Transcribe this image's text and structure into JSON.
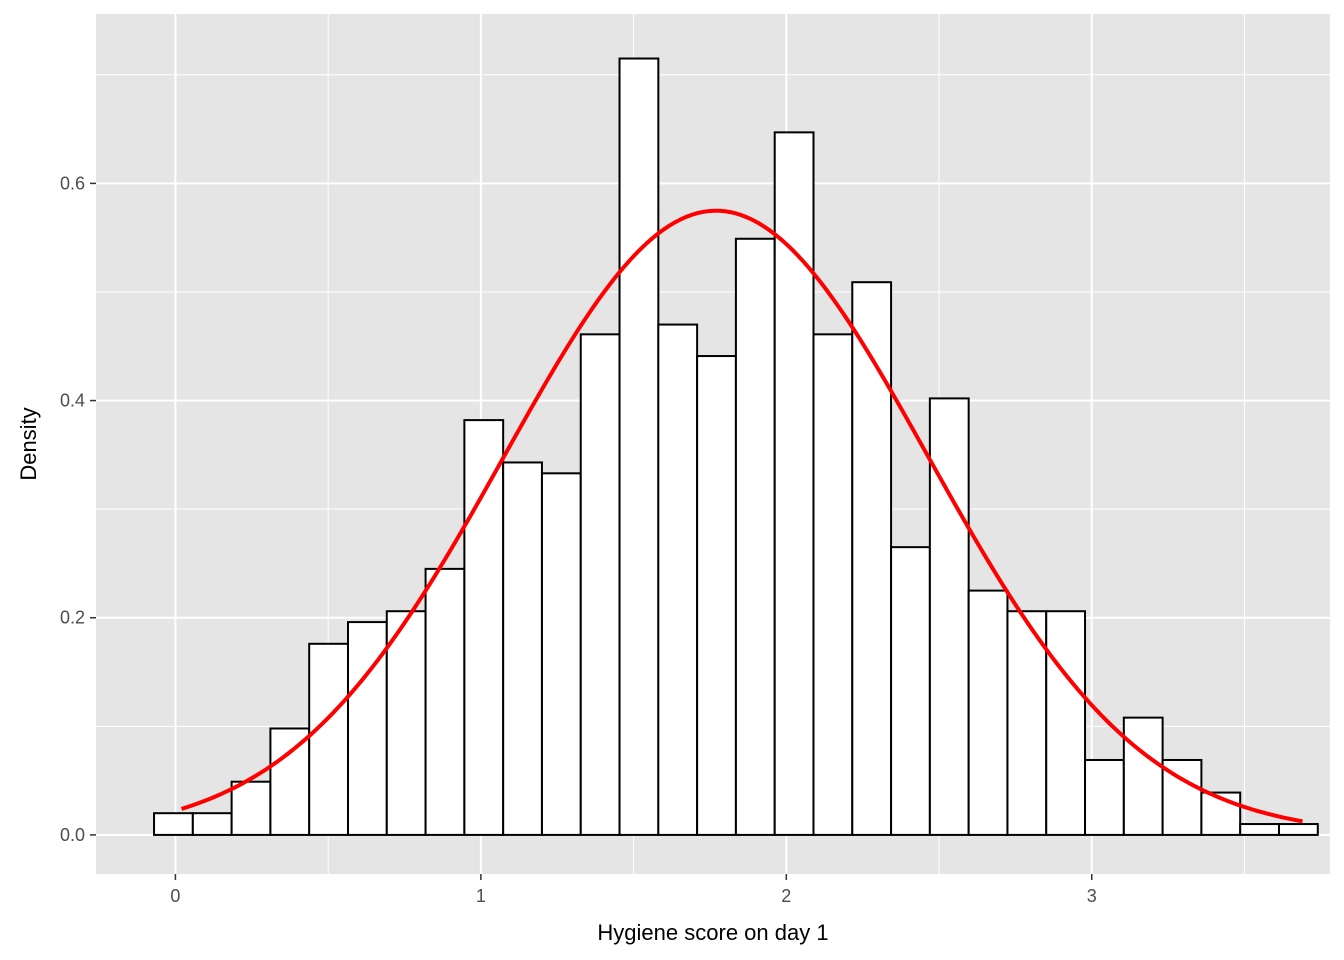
{
  "chart_data": {
    "type": "bar",
    "subtype": "histogram with normal density curve",
    "xlabel": "Hygiene score on day 1",
    "ylabel": "Density",
    "xlim": [
      -0.26,
      3.78
    ],
    "ylim": [
      -0.036,
      0.756
    ],
    "x_ticks": [
      {
        "value": 0,
        "label": "0"
      },
      {
        "value": 1,
        "label": "1"
      },
      {
        "value": 2,
        "label": "2"
      },
      {
        "value": 3,
        "label": "3"
      }
    ],
    "y_ticks": [
      {
        "value": 0.0,
        "label": "0.0"
      },
      {
        "value": 0.2,
        "label": "0.2"
      },
      {
        "value": 0.4,
        "label": "0.4"
      },
      {
        "value": 0.6,
        "label": "0.6"
      }
    ],
    "grid": true,
    "bin_width": 0.127,
    "bins": [
      {
        "x0": -0.07,
        "density": 0.02
      },
      {
        "x0": 0.057,
        "density": 0.02
      },
      {
        "x0": 0.184,
        "density": 0.049
      },
      {
        "x0": 0.311,
        "density": 0.098
      },
      {
        "x0": 0.438,
        "density": 0.176
      },
      {
        "x0": 0.565,
        "density": 0.196
      },
      {
        "x0": 0.692,
        "density": 0.206
      },
      {
        "x0": 0.819,
        "density": 0.245
      },
      {
        "x0": 0.946,
        "density": 0.382
      },
      {
        "x0": 1.073,
        "density": 0.343
      },
      {
        "x0": 1.2,
        "density": 0.333
      },
      {
        "x0": 1.327,
        "density": 0.461
      },
      {
        "x0": 1.454,
        "density": 0.715
      },
      {
        "x0": 1.581,
        "density": 0.47
      },
      {
        "x0": 1.708,
        "density": 0.441
      },
      {
        "x0": 1.835,
        "density": 0.549
      },
      {
        "x0": 1.962,
        "density": 0.647
      },
      {
        "x0": 2.089,
        "density": 0.461
      },
      {
        "x0": 2.216,
        "density": 0.509
      },
      {
        "x0": 2.343,
        "density": 0.265
      },
      {
        "x0": 2.47,
        "density": 0.402
      },
      {
        "x0": 2.597,
        "density": 0.225
      },
      {
        "x0": 2.724,
        "density": 0.206
      },
      {
        "x0": 2.851,
        "density": 0.206
      },
      {
        "x0": 2.978,
        "density": 0.069
      },
      {
        "x0": 3.105,
        "density": 0.108
      },
      {
        "x0": 3.232,
        "density": 0.069
      },
      {
        "x0": 3.359,
        "density": 0.039
      },
      {
        "x0": 3.486,
        "density": 0.01
      },
      {
        "x0": 3.613,
        "density": 0.01
      }
    ],
    "normal_curve": {
      "mean": 1.77,
      "sd": 0.694,
      "x_range": [
        0.02,
        3.69
      ],
      "color": "#ff0000"
    },
    "colors": {
      "panel_background": "#e5e5e5",
      "grid": "#ffffff",
      "bar_fill": "#ffffff",
      "bar_stroke": "#000000",
      "curve": "#ff0000"
    }
  }
}
